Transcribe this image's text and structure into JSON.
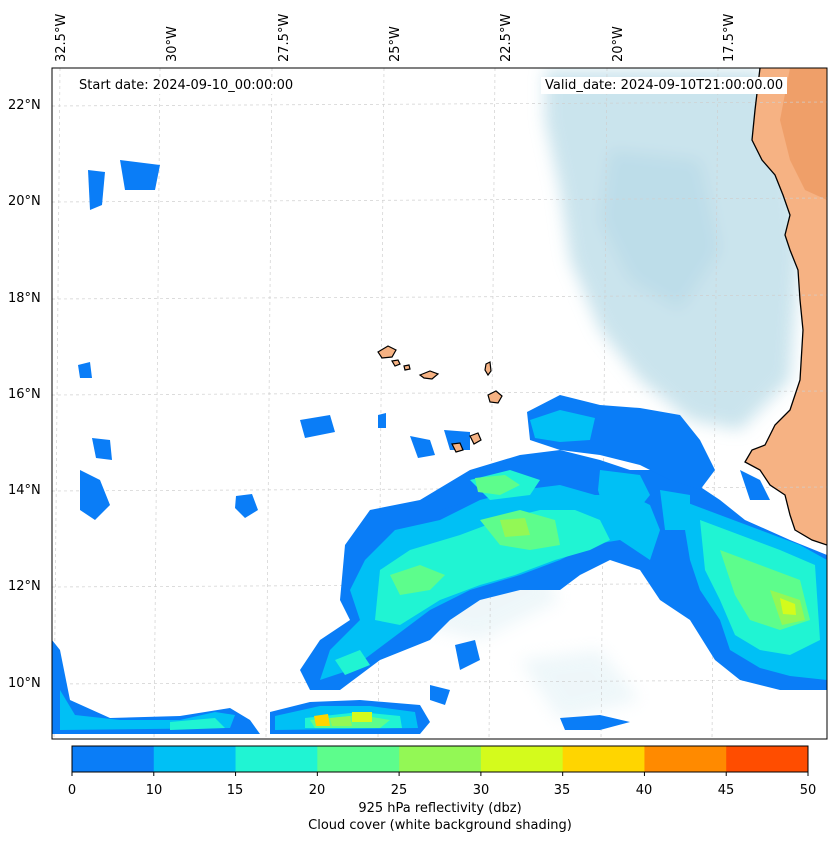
{
  "map": {
    "start_date": "Start date: 2024-09-10_00:00:00",
    "valid_date": "Valid_date: 2024-09-10T21:00:00.00",
    "longitude_labels": [
      "32.5°W",
      "30°W",
      "27.5°W",
      "25°W",
      "22.5°W",
      "20°W",
      "17.5°W"
    ],
    "latitude_labels": [
      "22°N",
      "20°N",
      "18°N",
      "16°N",
      "14°N",
      "12°N",
      "10°N"
    ],
    "extent": {
      "lon_min": -32.8,
      "lon_max": -15.5,
      "lat_min": 8.9,
      "lat_max": 22.8
    }
  },
  "colorbar": {
    "ticks": [
      "0",
      "10",
      "15",
      "20",
      "25",
      "30",
      "35",
      "40",
      "45",
      "50"
    ],
    "colors": [
      "#0a7df7",
      "#00c0f5",
      "#20f4d3",
      "#5dfd8c",
      "#93f855",
      "#d4fb1c",
      "#ffd500",
      "#ff8a00",
      "#ff4d00"
    ],
    "label": "925 hPa reflectivity (dbz)",
    "sublabel": "Cloud cover (white background shading)"
  },
  "colors": {
    "land": "#f4a36a",
    "cloud_shading": "#b9dbe7",
    "coastline": "#000000",
    "grid": "#cfcfcf"
  }
}
